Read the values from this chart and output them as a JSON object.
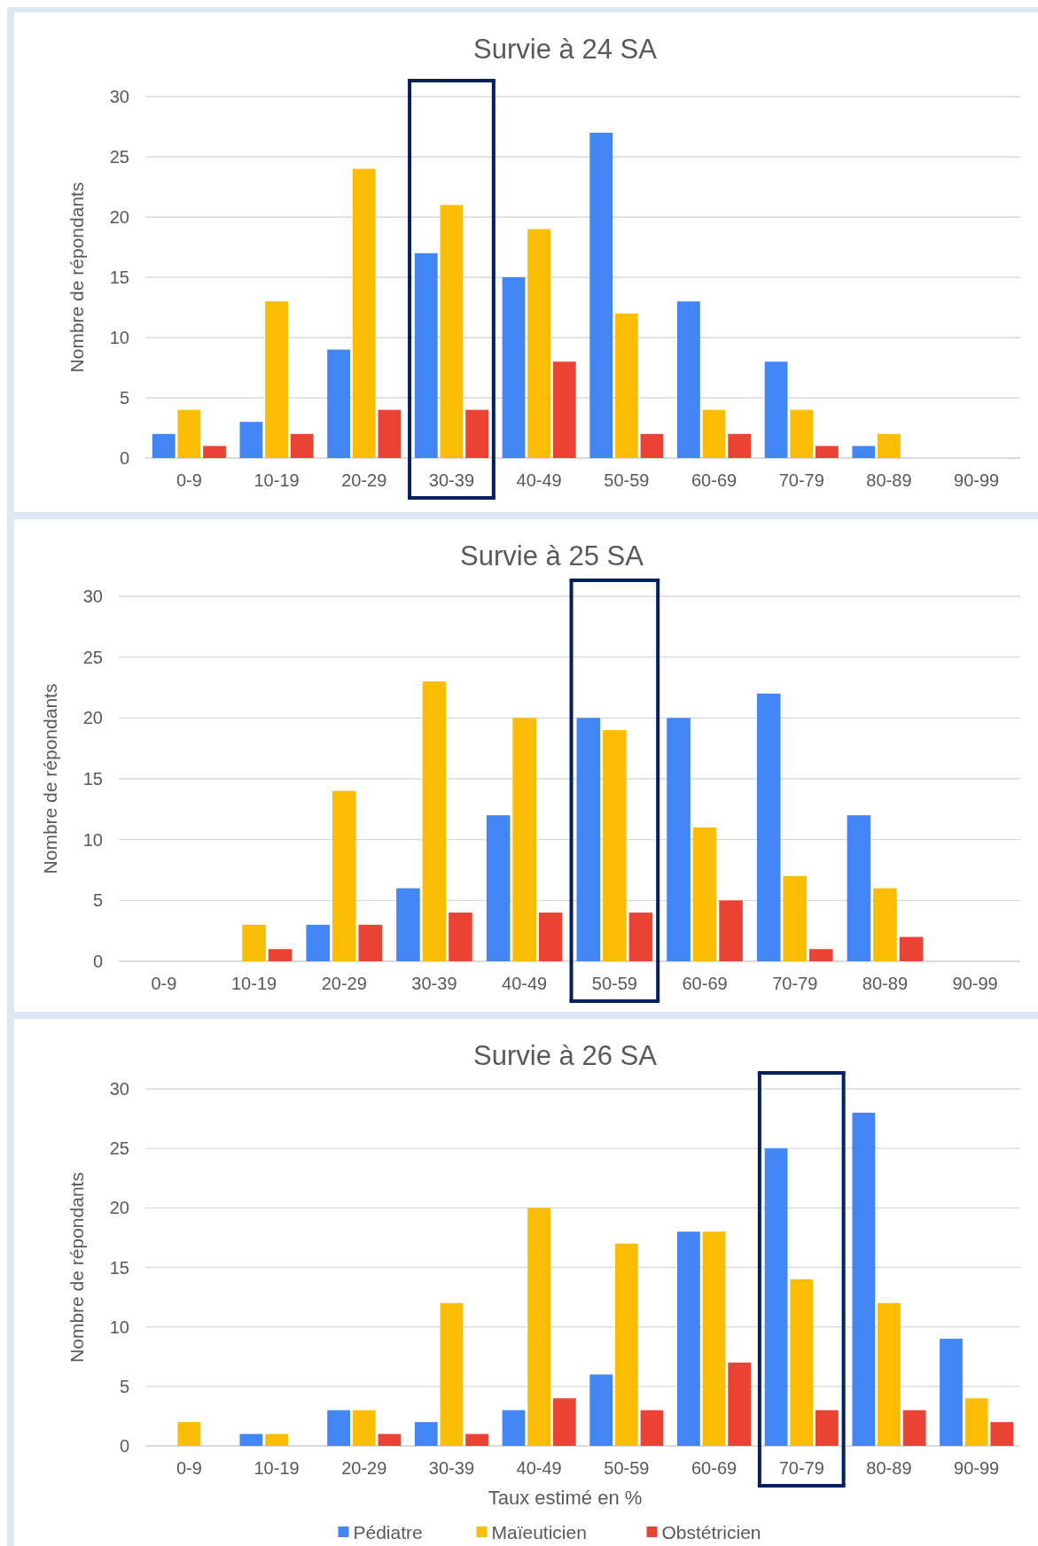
{
  "chart_data": [
    {
      "type": "bar",
      "title": "Survie à 24 SA",
      "ylabel": "Nombre de répondants",
      "categories": [
        "0-9",
        "10-19",
        "20-29",
        "30-39",
        "40-49",
        "50-59",
        "60-69",
        "70-79",
        "80-89",
        "90-99"
      ],
      "ylim": [
        0,
        30
      ],
      "yticks": [
        0,
        5,
        10,
        15,
        20,
        25,
        30
      ],
      "grid": "y",
      "series": [
        {
          "color": "#4285f4",
          "values": [
            2,
            3,
            9,
            17,
            15,
            27,
            13,
            8,
            1,
            0
          ]
        },
        {
          "color": "#fbbc04",
          "values": [
            4,
            13,
            24,
            21,
            19,
            12,
            4,
            4,
            2,
            0
          ]
        },
        {
          "color": "#ea4335",
          "values": [
            1,
            2,
            4,
            4,
            8,
            2,
            2,
            1,
            0,
            0
          ]
        }
      ]
    },
    {
      "type": "bar",
      "title": "Survie à 25 SA",
      "ylabel": "Nombre de répondants",
      "categories": [
        "0-9",
        "10-19",
        "20-29",
        "30-39",
        "40-49",
        "50-59",
        "60-69",
        "70-79",
        "80-89",
        "90-99"
      ],
      "ylim": [
        0,
        30
      ],
      "yticks": [
        0,
        5,
        10,
        15,
        20,
        25,
        30
      ],
      "grid": "y",
      "series": [
        {
          "color": "#4285f4",
          "values": [
            0,
            0,
            3,
            6,
            12,
            20,
            20,
            22,
            12,
            0
          ]
        },
        {
          "color": "#fbbc04",
          "values": [
            0,
            3,
            14,
            23,
            20,
            19,
            11,
            7,
            6,
            0
          ]
        },
        {
          "color": "#ea4335",
          "values": [
            0,
            1,
            3,
            4,
            4,
            4,
            5,
            1,
            2,
            0
          ]
        }
      ]
    },
    {
      "type": "bar",
      "title": "Survie à 26 SA",
      "ylabel": "Nombre de répondants",
      "xlabel": "Taux estimé en %",
      "categories": [
        "0-9",
        "10-19",
        "20-29",
        "30-39",
        "40-49",
        "50-59",
        "60-69",
        "70-79",
        "80-89",
        "90-99"
      ],
      "ylim": [
        0,
        30
      ],
      "yticks": [
        0,
        5,
        10,
        15,
        20,
        25,
        30
      ],
      "grid": "y",
      "legend": "bottom",
      "series": [
        {
          "name": "Pédiatre",
          "color": "#4285f4",
          "values": [
            0,
            1,
            3,
            2,
            3,
            6,
            18,
            25,
            28,
            9
          ]
        },
        {
          "name": "Maïeuticien",
          "color": "#fbbc04",
          "values": [
            2,
            1,
            3,
            12,
            20,
            17,
            18,
            14,
            12,
            4
          ]
        },
        {
          "name": "Obstétricien",
          "color": "#ea4335",
          "values": [
            0,
            0,
            1,
            1,
            4,
            3,
            7,
            3,
            3,
            2
          ]
        }
      ]
    }
  ]
}
